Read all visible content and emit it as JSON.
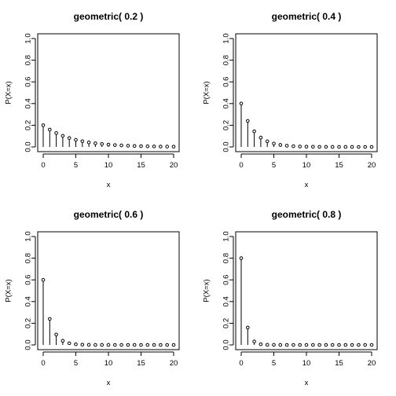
{
  "chart_data": [
    {
      "type": "lollipop",
      "title": "geometric( 0.2 )",
      "xlabel": "x",
      "ylabel": "P(X=x)",
      "p": 0.2,
      "xlim": [
        0,
        20
      ],
      "ylim": [
        0,
        1
      ],
      "x_ticks": [
        "0",
        "5",
        "10",
        "15",
        "20"
      ],
      "y_ticks": [
        "0.0",
        "0.2",
        "0.4",
        "0.6",
        "0.8",
        "1.0"
      ],
      "x": [
        0,
        1,
        2,
        3,
        4,
        5,
        6,
        7,
        8,
        9,
        10,
        11,
        12,
        13,
        14,
        15,
        16,
        17,
        18,
        19,
        20
      ],
      "values": [
        0.2,
        0.16,
        0.128,
        0.1024,
        0.082,
        0.0655,
        0.0524,
        0.0419,
        0.0336,
        0.0268,
        0.0215,
        0.0172,
        0.0137,
        0.011,
        0.0088,
        0.007,
        0.0056,
        0.0045,
        0.0036,
        0.0029,
        0.0023
      ]
    },
    {
      "type": "lollipop",
      "title": "geometric( 0.4 )",
      "xlabel": "x",
      "ylabel": "P(X=x)",
      "p": 0.4,
      "xlim": [
        0,
        20
      ],
      "ylim": [
        0,
        1
      ],
      "x_ticks": [
        "0",
        "5",
        "10",
        "15",
        "20"
      ],
      "y_ticks": [
        "0.0",
        "0.2",
        "0.4",
        "0.6",
        "0.8",
        "1.0"
      ],
      "x": [
        0,
        1,
        2,
        3,
        4,
        5,
        6,
        7,
        8,
        9,
        10,
        11,
        12,
        13,
        14,
        15,
        16,
        17,
        18,
        19,
        20
      ],
      "values": [
        0.4,
        0.24,
        0.144,
        0.0864,
        0.0518,
        0.0311,
        0.0187,
        0.0112,
        0.0067,
        0.004,
        0.0024,
        0.0015,
        0.0009,
        0.0005,
        0.0003,
        0.0002,
        0.0001,
        0.0001,
        0.0,
        0.0,
        0.0
      ]
    },
    {
      "type": "lollipop",
      "title": "geometric( 0.6 )",
      "xlabel": "x",
      "ylabel": "P(X=x)",
      "p": 0.6,
      "xlim": [
        0,
        20
      ],
      "ylim": [
        0,
        1
      ],
      "x_ticks": [
        "0",
        "5",
        "10",
        "15",
        "20"
      ],
      "y_ticks": [
        "0.0",
        "0.2",
        "0.4",
        "0.6",
        "0.8",
        "1.0"
      ],
      "x": [
        0,
        1,
        2,
        3,
        4,
        5,
        6,
        7,
        8,
        9,
        10,
        11,
        12,
        13,
        14,
        15,
        16,
        17,
        18,
        19,
        20
      ],
      "values": [
        0.6,
        0.24,
        0.096,
        0.0384,
        0.0154,
        0.0061,
        0.0025,
        0.001,
        0.0004,
        0.0002,
        0.0001,
        0.0,
        0.0,
        0.0,
        0.0,
        0.0,
        0.0,
        0.0,
        0.0,
        0.0,
        0.0
      ]
    },
    {
      "type": "lollipop",
      "title": "geometric( 0.8 )",
      "xlabel": "x",
      "ylabel": "P(X=x)",
      "p": 0.8,
      "xlim": [
        0,
        20
      ],
      "ylim": [
        0,
        1
      ],
      "x_ticks": [
        "0",
        "5",
        "10",
        "15",
        "20"
      ],
      "y_ticks": [
        "0.0",
        "0.2",
        "0.4",
        "0.6",
        "0.8",
        "1.0"
      ],
      "x": [
        0,
        1,
        2,
        3,
        4,
        5,
        6,
        7,
        8,
        9,
        10,
        11,
        12,
        13,
        14,
        15,
        16,
        17,
        18,
        19,
        20
      ],
      "values": [
        0.8,
        0.16,
        0.032,
        0.0064,
        0.0013,
        0.0003,
        0.0001,
        0.0,
        0.0,
        0.0,
        0.0,
        0.0,
        0.0,
        0.0,
        0.0,
        0.0,
        0.0,
        0.0,
        0.0,
        0.0,
        0.0
      ]
    }
  ],
  "style": {
    "line_color": "#000000",
    "point_fill": "#ffffff",
    "background": "#ffffff"
  }
}
